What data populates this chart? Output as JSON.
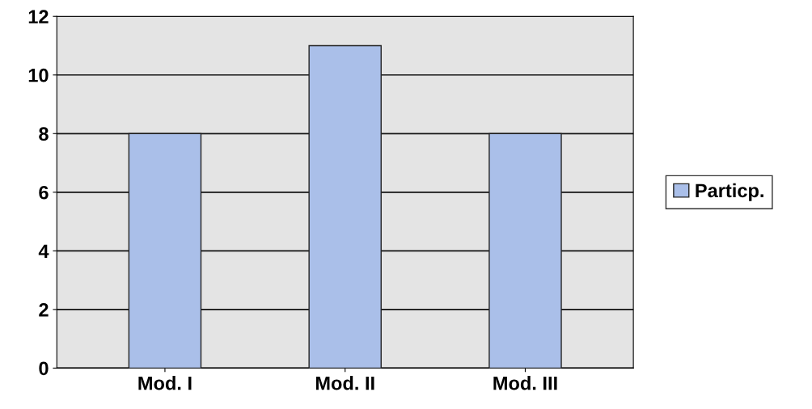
{
  "chart_data": {
    "type": "bar",
    "categories": [
      "Mod. I",
      "Mod. II",
      "Mod. III"
    ],
    "series": [
      {
        "name": "Particp.",
        "color": "#aabfe9",
        "values": [
          8,
          11,
          8
        ]
      }
    ],
    "ylim": [
      0,
      12
    ],
    "yticks": [
      0,
      2,
      4,
      6,
      8,
      10,
      12
    ],
    "grid": "y",
    "legend": "right"
  }
}
